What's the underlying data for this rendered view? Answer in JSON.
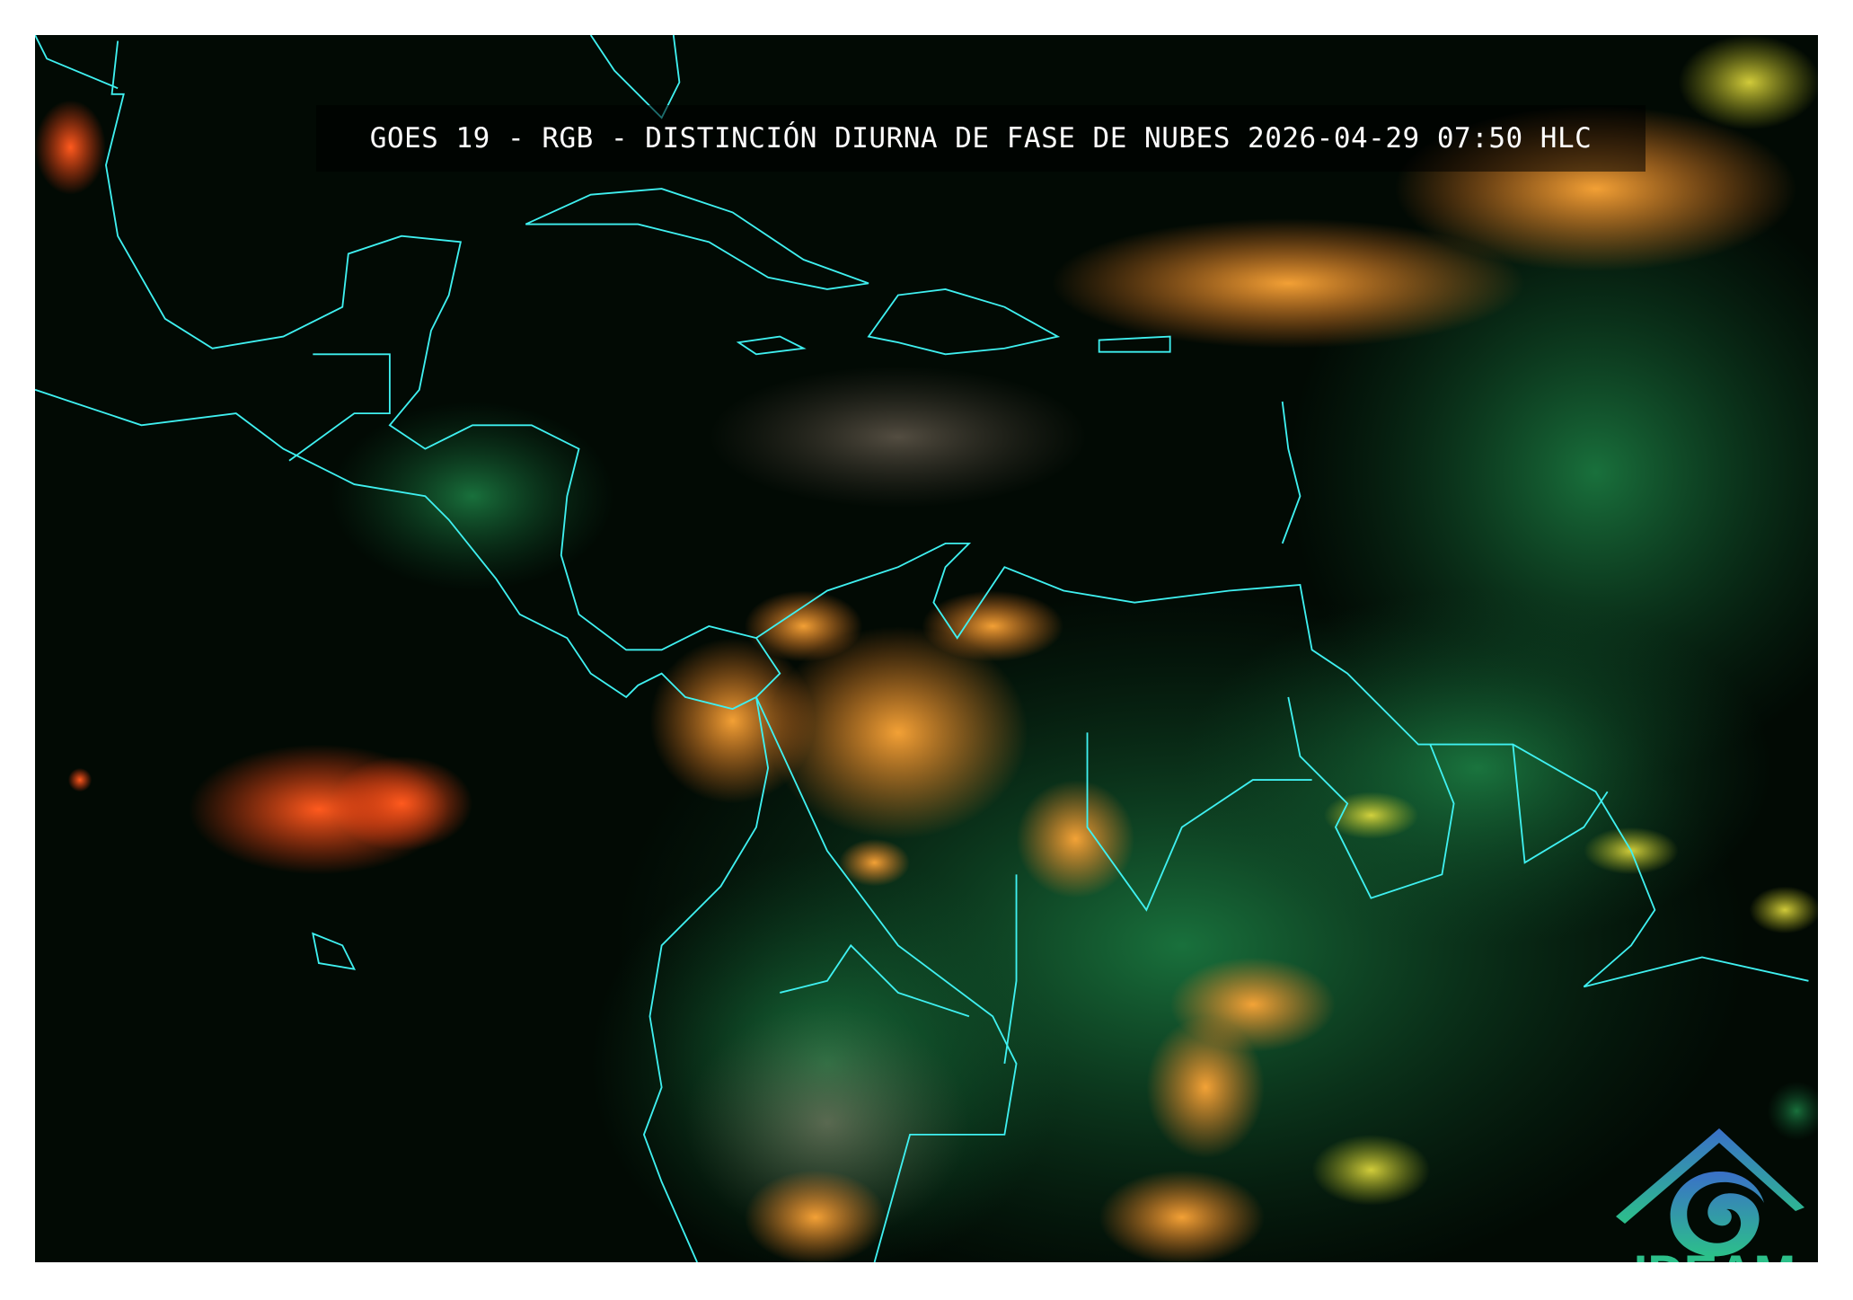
{
  "title": "GOES 19 - RGB - DISTINCIÓN DIURNA DE FASE DE NUBES 2026-04-29 07:50 HLC",
  "logo": {
    "text": "IDEAM",
    "color": "#2cc08a"
  },
  "colors": {
    "background": "#020a04",
    "coastline": "#3ff0f0",
    "ice_cloud": "#ff5a1e",
    "mixed_cloud": "#ffa030",
    "water_cloud": "#2ad07a"
  }
}
